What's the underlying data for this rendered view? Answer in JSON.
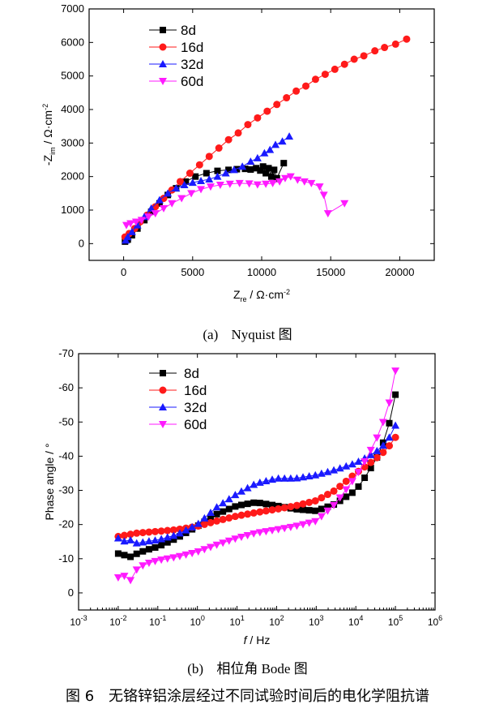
{
  "figure_caption": {
    "number": "图 6",
    "text": "无铬锌铝涂层经过不同试验时间后的电化学阻抗谱"
  },
  "chart_data": [
    {
      "type": "scatter",
      "subcaption_letter": "(a)",
      "subcaption_text": "Nyquist 图",
      "xlabel_main": "Z",
      "xlabel_sub": "re",
      "xlabel_unit": " / Ω·cm",
      "xlabel_sup": "-2",
      "ylabel_main": "-Z",
      "ylabel_sub": "im",
      "ylabel_unit": " / Ω·cm",
      "ylabel_sup": "-2",
      "xlim": [
        -2500,
        22500
      ],
      "ylim": [
        -500,
        7000
      ],
      "x_ticks": [
        0,
        5000,
        10000,
        15000,
        20000
      ],
      "x_tick_labels": [
        "0",
        "5000",
        "10000",
        "15000",
        "20000"
      ],
      "y_ticks": [
        0,
        1000,
        2000,
        3000,
        4000,
        5000,
        6000,
        7000
      ],
      "y_tick_labels": [
        "0",
        "1000",
        "2000",
        "3000",
        "4000",
        "5000",
        "6000",
        "7000"
      ],
      "legend_position": "top-left",
      "series": [
        {
          "name": "8d",
          "color": "#000000",
          "marker": "square",
          "points": [
            [
              100,
              60
            ],
            [
              300,
              120
            ],
            [
              600,
              250
            ],
            [
              1000,
              450
            ],
            [
              1500,
              700
            ],
            [
              2000,
              950
            ],
            [
              2600,
              1200
            ],
            [
              3200,
              1450
            ],
            [
              3800,
              1650
            ],
            [
              4500,
              1850
            ],
            [
              5200,
              2000
            ],
            [
              6000,
              2100
            ],
            [
              6800,
              2170
            ],
            [
              7600,
              2200
            ],
            [
              8200,
              2220
            ],
            [
              8800,
              2230
            ],
            [
              9200,
              2210
            ],
            [
              9600,
              2250
            ],
            [
              9900,
              2180
            ],
            [
              10100,
              2300
            ],
            [
              10300,
              2100
            ],
            [
              10500,
              2250
            ],
            [
              10700,
              2000
            ],
            [
              10900,
              2200
            ],
            [
              11100,
              1950
            ],
            [
              11600,
              2400
            ]
          ]
        },
        {
          "name": "16d",
          "color": "#ff1a1a",
          "marker": "circle",
          "points": [
            [
              100,
              200
            ],
            [
              400,
              300
            ],
            [
              800,
              450
            ],
            [
              1200,
              650
            ],
            [
              1700,
              850
            ],
            [
              2300,
              1100
            ],
            [
              2900,
              1350
            ],
            [
              3500,
              1600
            ],
            [
              4100,
              1850
            ],
            [
              4800,
              2100
            ],
            [
              5500,
              2350
            ],
            [
              6200,
              2600
            ],
            [
              6900,
              2850
            ],
            [
              7600,
              3100
            ],
            [
              8300,
              3300
            ],
            [
              9000,
              3550
            ],
            [
              9700,
              3750
            ],
            [
              10400,
              3950
            ],
            [
              11100,
              4150
            ],
            [
              11800,
              4350
            ],
            [
              12500,
              4550
            ],
            [
              13200,
              4700
            ],
            [
              13900,
              4900
            ],
            [
              14600,
              5050
            ],
            [
              15300,
              5200
            ],
            [
              16000,
              5350
            ],
            [
              16700,
              5500
            ],
            [
              17400,
              5600
            ],
            [
              18200,
              5750
            ],
            [
              18900,
              5850
            ],
            [
              19700,
              5950
            ],
            [
              20500,
              6100
            ]
          ]
        },
        {
          "name": "32d",
          "color": "#1a1aff",
          "marker": "triangle-up",
          "points": [
            [
              150,
              100
            ],
            [
              300,
              200
            ],
            [
              600,
              350
            ],
            [
              1000,
              550
            ],
            [
              1500,
              800
            ],
            [
              2000,
              1050
            ],
            [
              2600,
              1300
            ],
            [
              3200,
              1500
            ],
            [
              3800,
              1650
            ],
            [
              4400,
              1750
            ],
            [
              5000,
              1820
            ],
            [
              5600,
              1870
            ],
            [
              6200,
              1920
            ],
            [
              6800,
              2000
            ],
            [
              7400,
              2100
            ],
            [
              8000,
              2200
            ],
            [
              8600,
              2300
            ],
            [
              9200,
              2450
            ],
            [
              9700,
              2550
            ],
            [
              10200,
              2700
            ],
            [
              10600,
              2800
            ],
            [
              11000,
              2950
            ],
            [
              11500,
              3050
            ],
            [
              12000,
              3200
            ]
          ]
        },
        {
          "name": "60d",
          "color": "#ff1aff",
          "marker": "triangle-down",
          "points": [
            [
              200,
              550
            ],
            [
              500,
              600
            ],
            [
              900,
              650
            ],
            [
              1300,
              700
            ],
            [
              1800,
              800
            ],
            [
              2300,
              900
            ],
            [
              2900,
              1050
            ],
            [
              3500,
              1200
            ],
            [
              4200,
              1350
            ],
            [
              4900,
              1500
            ],
            [
              5600,
              1620
            ],
            [
              6300,
              1700
            ],
            [
              7000,
              1750
            ],
            [
              7700,
              1780
            ],
            [
              8400,
              1800
            ],
            [
              9100,
              1790
            ],
            [
              9700,
              1760
            ],
            [
              10300,
              1780
            ],
            [
              10800,
              1800
            ],
            [
              11300,
              1850
            ],
            [
              11700,
              1950
            ],
            [
              12100,
              2000
            ],
            [
              12600,
              1900
            ],
            [
              13100,
              1850
            ],
            [
              13600,
              1800
            ],
            [
              14200,
              1700
            ],
            [
              14500,
              1450
            ],
            [
              14800,
              900
            ],
            [
              16000,
              1200
            ]
          ]
        }
      ]
    },
    {
      "type": "scatter",
      "subcaption_letter": "(b)",
      "subcaption_text": "相位角 Bode 图",
      "xlabel_main": "f",
      "xlabel_unit": " / Hz",
      "ylabel": "Phase angle / °",
      "x_scale": "log",
      "xlim": [
        0.001,
        1000000
      ],
      "ylim": [
        5,
        -70
      ],
      "x_ticks": [
        0.001,
        0.01,
        0.1,
        1,
        10,
        100,
        1000,
        10000,
        100000,
        1000000
      ],
      "x_tick_exponents": [
        "-3",
        "-2",
        "-1",
        "0",
        "1",
        "2",
        "3",
        "4",
        "5",
        "6"
      ],
      "y_ticks": [
        0,
        -10,
        -20,
        -30,
        -40,
        -50,
        -60,
        -70
      ],
      "y_tick_labels": [
        "0",
        "-10",
        "-20",
        "-30",
        "-40",
        "-50",
        "-60",
        "-70"
      ],
      "legend_position": "top-left",
      "series": [
        {
          "name": "8d",
          "color": "#000000",
          "marker": "square",
          "curve": [
            [
              0.01,
              -11.5
            ],
            [
              0.015,
              -11
            ],
            [
              0.02,
              -10.5
            ],
            [
              0.03,
              -11.5
            ],
            [
              0.05,
              -12.5
            ],
            [
              0.1,
              -13.5
            ],
            [
              0.3,
              -16
            ],
            [
              1,
              -19.5
            ],
            [
              3,
              -23
            ],
            [
              10,
              -25.5
            ],
            [
              30,
              -26.5
            ],
            [
              100,
              -25.5
            ],
            [
              300,
              -24.5
            ],
            [
              1000,
              -24
            ],
            [
              3000,
              -26
            ],
            [
              10000,
              -30
            ],
            [
              20000,
              -35
            ],
            [
              40000,
              -41
            ],
            [
              60000,
              -47
            ],
            [
              80000,
              -52
            ],
            [
              100000,
              -58
            ]
          ]
        },
        {
          "name": "16d",
          "color": "#ff1a1a",
          "marker": "circle",
          "curve": [
            [
              0.01,
              -16.5
            ],
            [
              0.03,
              -17.5
            ],
            [
              0.1,
              -18
            ],
            [
              0.3,
              -18.5
            ],
            [
              1,
              -19.5
            ],
            [
              3,
              -21
            ],
            [
              10,
              -22.5
            ],
            [
              30,
              -23.5
            ],
            [
              100,
              -24.5
            ],
            [
              300,
              -25.5
            ],
            [
              1000,
              -27
            ],
            [
              3000,
              -30
            ],
            [
              10000,
              -35
            ],
            [
              30000,
              -39
            ],
            [
              60000,
              -42
            ],
            [
              100000,
              -45.5
            ]
          ]
        },
        {
          "name": "32d",
          "color": "#1a1aff",
          "marker": "triangle-up",
          "curve": [
            [
              0.01,
              -16
            ],
            [
              0.015,
              -15
            ],
            [
              0.02,
              -15.5
            ],
            [
              0.03,
              -14.5
            ],
            [
              0.05,
              -15
            ],
            [
              0.1,
              -15.5
            ],
            [
              0.3,
              -17
            ],
            [
              1,
              -20
            ],
            [
              3,
              -25
            ],
            [
              10,
              -29
            ],
            [
              30,
              -32
            ],
            [
              100,
              -33.5
            ],
            [
              300,
              -33.5
            ],
            [
              1000,
              -34.5
            ],
            [
              3000,
              -36
            ],
            [
              10000,
              -38
            ],
            [
              30000,
              -41
            ],
            [
              60000,
              -44
            ],
            [
              100000,
              -49
            ]
          ]
        },
        {
          "name": "60d",
          "color": "#ff1aff",
          "marker": "triangle-down",
          "curve": [
            [
              0.01,
              -4.5
            ],
            [
              0.015,
              -5
            ],
            [
              0.02,
              -3.5
            ],
            [
              0.03,
              -7
            ],
            [
              0.05,
              -8.5
            ],
            [
              0.1,
              -9.5
            ],
            [
              0.3,
              -10.5
            ],
            [
              1,
              -12
            ],
            [
              3,
              -14
            ],
            [
              10,
              -16
            ],
            [
              30,
              -17.5
            ],
            [
              100,
              -18.5
            ],
            [
              300,
              -19.5
            ],
            [
              1000,
              -21
            ],
            [
              3000,
              -26
            ],
            [
              10000,
              -34
            ],
            [
              20000,
              -40
            ],
            [
              40000,
              -47
            ],
            [
              60000,
              -53
            ],
            [
              80000,
              -58
            ],
            [
              100000,
              -65
            ]
          ]
        }
      ]
    }
  ]
}
